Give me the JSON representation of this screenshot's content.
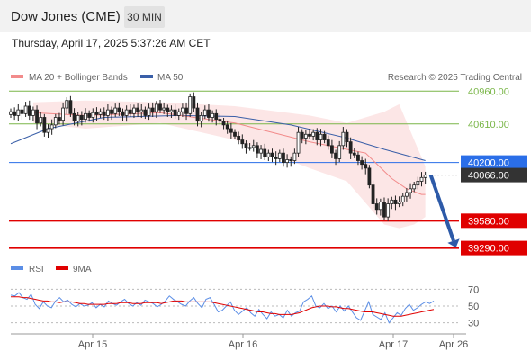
{
  "header": {
    "title": "Dow Jones (CME)",
    "timeframe": "30 MIN"
  },
  "datetime": "Thursday, April 17, 2025 5:37:26 AM CET",
  "legend": {
    "bb": "MA 20 + Bollinger Bands",
    "ma50": "MA 50",
    "credit": "Research © 2025 Trading Central"
  },
  "rsi_legend": {
    "rsi": "RSI",
    "ma9": "9MA"
  },
  "colors": {
    "bb": "#f28b8b",
    "ma50": "#3a5fa8",
    "rsi": "#5b8ee6",
    "ma9": "#e00000",
    "resistance": "#7ab648",
    "support": "#e00000",
    "pivot": "#2a6ee8",
    "current": "#333333"
  },
  "chart_data": [
    {
      "type": "candlestick",
      "instrument": "Dow Jones (CME)",
      "timeframe": "30 MIN",
      "ylim": [
        39200,
        41020
      ],
      "x_ticks": [
        "Apr 15",
        "Apr 16",
        "Apr 17",
        "Apr 26"
      ],
      "price_levels": [
        {
          "value": "40960.00",
          "kind": "resistance"
        },
        {
          "value": "40610.00",
          "kind": "resistance"
        },
        {
          "value": "40200.00",
          "kind": "pivot"
        },
        {
          "value": "40066.00",
          "kind": "current"
        },
        {
          "value": "39580.00",
          "kind": "support"
        },
        {
          "value": "39290.00",
          "kind": "support"
        }
      ],
      "close": [
        40740,
        40700,
        40760,
        40720,
        40800,
        40700,
        40760,
        40620,
        40680,
        40520,
        40560,
        40600,
        40680,
        40650,
        40780,
        40860,
        40720,
        40640,
        40700,
        40660,
        40720,
        40680,
        40730,
        40710,
        40740,
        40700,
        40760,
        40720,
        40780,
        40740,
        40700,
        40760,
        40720,
        40780,
        40740,
        40760,
        40700,
        40780,
        40740,
        40820,
        40760,
        40780,
        40740,
        40760,
        40700,
        40740,
        40780,
        40720,
        40900,
        40780,
        40640,
        40700,
        40760,
        40680,
        40720,
        40660,
        40640,
        40600,
        40560,
        40520,
        40480,
        40440,
        40400,
        40360,
        40360,
        40380,
        40300,
        40340,
        40260,
        40300,
        40260,
        40240,
        40300,
        40200,
        40230,
        40220,
        40300,
        40520,
        40460,
        40500,
        40480,
        40520,
        40440,
        40500,
        40440,
        40380,
        40300,
        40240,
        40380,
        40520,
        40420,
        40300,
        40280,
        40220,
        40180,
        40140,
        39960,
        39760,
        39700,
        39780,
        39620,
        39760,
        39800,
        39760,
        39780,
        39840,
        39880,
        39920,
        39960,
        40000,
        40040,
        40066
      ],
      "ma20_points": [
        [
          6,
          40730
        ],
        [
          20,
          40700
        ],
        [
          40,
          40730
        ],
        [
          60,
          40620
        ],
        [
          80,
          40420
        ],
        [
          95,
          40300
        ],
        [
          102,
          40030
        ],
        [
          106,
          39920
        ],
        [
          110,
          39860
        ],
        [
          111,
          39860
        ]
      ],
      "ma50_points": [
        [
          0,
          40400
        ],
        [
          10,
          40560
        ],
        [
          25,
          40680
        ],
        [
          45,
          40700
        ],
        [
          60,
          40690
        ],
        [
          75,
          40600
        ],
        [
          90,
          40460
        ],
        [
          100,
          40340
        ],
        [
          111,
          40220
        ]
      ],
      "bb_upper": [
        [
          6,
          40840
        ],
        [
          20,
          40860
        ],
        [
          40,
          40840
        ],
        [
          60,
          40800
        ],
        [
          80,
          40700
        ],
        [
          90,
          40620
        ],
        [
          100,
          40740
        ],
        [
          104,
          40820
        ],
        [
          108,
          40440
        ],
        [
          111,
          40160
        ]
      ],
      "bb_lower": [
        [
          6,
          40620
        ],
        [
          20,
          40560
        ],
        [
          40,
          40620
        ],
        [
          60,
          40440
        ],
        [
          80,
          40140
        ],
        [
          90,
          40000
        ],
        [
          100,
          39540
        ],
        [
          104,
          39500
        ],
        [
          108,
          39540
        ],
        [
          111,
          39620
        ]
      ],
      "projection": {
        "from": 40066,
        "to": 39290
      }
    },
    {
      "type": "line",
      "name": "RSI",
      "ylim": [
        20,
        80
      ],
      "y_ticks": [
        "70",
        "50",
        "30"
      ],
      "series": [
        {
          "name": "RSI",
          "values": [
            63,
            62,
            66,
            60,
            58,
            64,
            52,
            47,
            55,
            50,
            48,
            56,
            60,
            55,
            57,
            52,
            49,
            53,
            50,
            51,
            54,
            48,
            52,
            49,
            56,
            53,
            51,
            55,
            58,
            53,
            50,
            54,
            51,
            57,
            55,
            53,
            49,
            52,
            56,
            62,
            58,
            55,
            52,
            50,
            56,
            60,
            53,
            48,
            58,
            60,
            52,
            43,
            45,
            50,
            55,
            45,
            40,
            44,
            48,
            42,
            38,
            46,
            40,
            35,
            43,
            38,
            40,
            36,
            45,
            38,
            42,
            44,
            55,
            58,
            62,
            50,
            48,
            53,
            47,
            50,
            43,
            50,
            44,
            50,
            43,
            36,
            33,
            44,
            55,
            40,
            37,
            34,
            42,
            30,
            36,
            42,
            39,
            47,
            52,
            45,
            48,
            52,
            55,
            53,
            56
          ]
        },
        {
          "name": "9MA",
          "values": [
            61,
            61,
            61,
            60,
            60,
            59,
            58,
            57,
            56,
            56,
            55,
            55,
            54,
            55,
            55,
            55,
            54,
            53,
            53,
            52,
            52,
            52,
            52,
            52,
            53,
            53,
            53,
            54,
            54,
            54,
            53,
            53,
            53,
            54,
            54,
            54,
            54,
            53,
            54,
            55,
            56,
            56,
            56,
            55,
            55,
            55,
            55,
            55,
            55,
            55,
            54,
            53,
            52,
            51,
            50,
            49,
            48,
            47,
            46,
            45,
            44,
            43,
            43,
            42,
            41,
            41,
            40,
            40,
            40,
            40,
            41,
            42,
            44,
            46,
            48,
            49,
            50,
            50,
            50,
            49,
            49,
            48,
            47,
            47,
            46,
            45,
            44,
            43,
            43,
            43,
            42,
            41,
            40,
            39,
            38,
            38,
            38,
            39,
            40,
            41,
            42,
            43,
            44,
            45,
            46
          ]
        }
      ]
    }
  ]
}
